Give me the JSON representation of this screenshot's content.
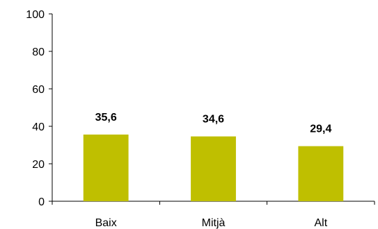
{
  "chart_data": {
    "type": "bar",
    "title": "",
    "xlabel": "",
    "ylabel": "",
    "categories": [
      "Baix",
      "Mitjà",
      "Alt"
    ],
    "values": [
      35.6,
      34.6,
      29.4
    ],
    "data_labels": [
      "35,6",
      "34,6",
      "29,4"
    ],
    "ylim": [
      0,
      100
    ],
    "yticks": [
      0,
      20,
      40,
      60,
      80,
      100
    ],
    "ytick_labels": [
      "0",
      "20",
      "40",
      "60",
      "80",
      "100"
    ],
    "grid": false,
    "legend": "none",
    "bar_color": "#bfbf00"
  }
}
